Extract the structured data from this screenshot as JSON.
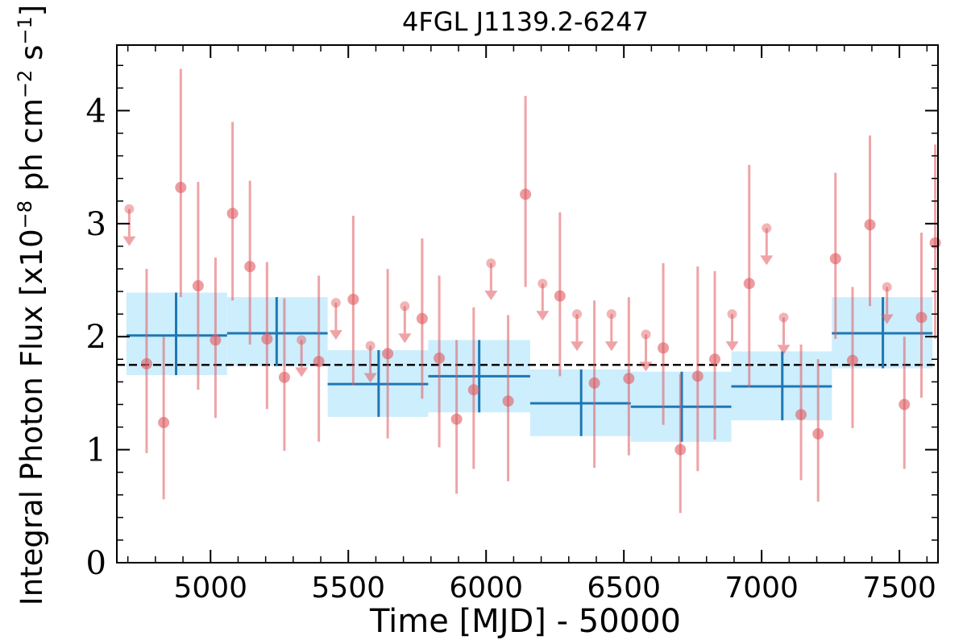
{
  "colors": {
    "light_curve": "#e05a5f",
    "bin": "#1f77b4",
    "bin_band": "#cdeefd",
    "mean_line": "#000000"
  },
  "chart_data": {
    "type": "scatter",
    "title": "4FGL J1139.2-6247",
    "xlabel": "Time [MJD] - 50000",
    "ylabel": "Integral Photon Flux [x10$^{-8}$ ph cm$^{-2}$ s$^{-1}$]",
    "xlim": [
      4660,
      7640
    ],
    "ylim": [
      0,
      4.58
    ],
    "xticks": [
      5000,
      5500,
      6000,
      6500,
      7000,
      7500
    ],
    "yticks": [
      0,
      1,
      2,
      3,
      4
    ],
    "mean_flux": 1.75,
    "grid": false,
    "points": [
      {
        "x": 4705,
        "y": 3.13,
        "upper_limit": true
      },
      {
        "x": 4768,
        "y": 1.76,
        "ylo": 0.97,
        "yhi": 2.6
      },
      {
        "x": 4830,
        "y": 1.24,
        "ylo": 0.56,
        "yhi": 2.0
      },
      {
        "x": 4892,
        "y": 3.32,
        "ylo": 2.35,
        "yhi": 4.37
      },
      {
        "x": 4955,
        "y": 2.45,
        "ylo": 1.53,
        "yhi": 3.37
      },
      {
        "x": 5018,
        "y": 1.97,
        "ylo": 1.28,
        "yhi": 2.7
      },
      {
        "x": 5080,
        "y": 3.09,
        "ylo": 2.32,
        "yhi": 3.9
      },
      {
        "x": 5143,
        "y": 2.62,
        "ylo": 1.93,
        "yhi": 3.38
      },
      {
        "x": 5205,
        "y": 1.98,
        "ylo": 1.36,
        "yhi": 2.66
      },
      {
        "x": 5268,
        "y": 1.64,
        "ylo": 0.99,
        "yhi": 2.34
      },
      {
        "x": 5330,
        "y": 1.97,
        "upper_limit": true
      },
      {
        "x": 5393,
        "y": 1.78,
        "ylo": 1.07,
        "yhi": 2.54
      },
      {
        "x": 5455,
        "y": 2.3,
        "upper_limit": true
      },
      {
        "x": 5518,
        "y": 2.33,
        "ylo": 1.57,
        "yhi": 3.07
      },
      {
        "x": 5580,
        "y": 1.92,
        "upper_limit": true
      },
      {
        "x": 5643,
        "y": 1.85,
        "ylo": 1.1,
        "yhi": 2.6
      },
      {
        "x": 5705,
        "y": 2.27,
        "upper_limit": true
      },
      {
        "x": 5768,
        "y": 2.16,
        "ylo": 1.45,
        "yhi": 2.87
      },
      {
        "x": 5830,
        "y": 1.81,
        "ylo": 1.02,
        "yhi": 2.54
      },
      {
        "x": 5893,
        "y": 1.27,
        "ylo": 0.61,
        "yhi": 1.97
      },
      {
        "x": 5955,
        "y": 1.53,
        "ylo": 0.83,
        "yhi": 2.26
      },
      {
        "x": 6018,
        "y": 2.65,
        "upper_limit": true
      },
      {
        "x": 6080,
        "y": 1.43,
        "ylo": 0.72,
        "yhi": 2.19
      },
      {
        "x": 6143,
        "y": 3.26,
        "ylo": 2.44,
        "yhi": 4.13
      },
      {
        "x": 6205,
        "y": 2.47,
        "upper_limit": true
      },
      {
        "x": 6268,
        "y": 2.36,
        "ylo": 1.65,
        "yhi": 3.1
      },
      {
        "x": 6330,
        "y": 2.2,
        "upper_limit": true
      },
      {
        "x": 6393,
        "y": 1.59,
        "ylo": 0.84,
        "yhi": 2.32
      },
      {
        "x": 6455,
        "y": 2.2,
        "upper_limit": true
      },
      {
        "x": 6518,
        "y": 1.63,
        "ylo": 0.95,
        "yhi": 2.35
      },
      {
        "x": 6580,
        "y": 2.02,
        "upper_limit": true
      },
      {
        "x": 6643,
        "y": 1.9,
        "ylo": 1.22,
        "yhi": 2.65
      },
      {
        "x": 6705,
        "y": 1.0,
        "ylo": 0.44,
        "yhi": 1.67
      },
      {
        "x": 6768,
        "y": 1.65,
        "ylo": 0.81,
        "yhi": 2.62
      },
      {
        "x": 6830,
        "y": 1.8,
        "ylo": 1.09,
        "yhi": 2.58
      },
      {
        "x": 6893,
        "y": 2.2,
        "upper_limit": true
      },
      {
        "x": 6955,
        "y": 2.47,
        "ylo": 1.55,
        "yhi": 3.52
      },
      {
        "x": 7018,
        "y": 2.96,
        "upper_limit": true
      },
      {
        "x": 7080,
        "y": 2.17,
        "upper_limit": true
      },
      {
        "x": 7143,
        "y": 1.31,
        "ylo": 0.73,
        "yhi": 1.93
      },
      {
        "x": 7205,
        "y": 1.14,
        "ylo": 0.54,
        "yhi": 1.8
      },
      {
        "x": 7268,
        "y": 2.69,
        "ylo": 1.98,
        "yhi": 3.45
      },
      {
        "x": 7330,
        "y": 1.79,
        "ylo": 1.19,
        "yhi": 2.44
      },
      {
        "x": 7393,
        "y": 2.99,
        "ylo": 2.27,
        "yhi": 3.78
      },
      {
        "x": 7455,
        "y": 2.44,
        "upper_limit": true
      },
      {
        "x": 7518,
        "y": 1.4,
        "ylo": 0.83,
        "yhi": 2.0
      },
      {
        "x": 7580,
        "y": 2.17,
        "ylo": 1.46,
        "yhi": 2.92
      },
      {
        "x": 7630,
        "y": 2.83,
        "ylo": 1.98,
        "yhi": 3.7
      }
    ],
    "bins": [
      {
        "x0": 4695,
        "x1": 5060,
        "xc": 4875,
        "y": 2.01,
        "ylo": 1.66,
        "yhi": 2.39
      },
      {
        "x0": 5060,
        "x1": 5425,
        "xc": 5240,
        "y": 2.03,
        "ylo": 1.74,
        "yhi": 2.35
      },
      {
        "x0": 5425,
        "x1": 5790,
        "xc": 5610,
        "y": 1.58,
        "ylo": 1.29,
        "yhi": 1.88
      },
      {
        "x0": 5790,
        "x1": 6160,
        "xc": 5975,
        "y": 1.65,
        "ylo": 1.33,
        "yhi": 1.97
      },
      {
        "x0": 6160,
        "x1": 6525,
        "xc": 6345,
        "y": 1.41,
        "ylo": 1.12,
        "yhi": 1.71
      },
      {
        "x0": 6525,
        "x1": 6890,
        "xc": 6710,
        "y": 1.38,
        "ylo": 1.07,
        "yhi": 1.69
      },
      {
        "x0": 6890,
        "x1": 7255,
        "xc": 7075,
        "y": 1.56,
        "ylo": 1.26,
        "yhi": 1.87
      },
      {
        "x0": 7255,
        "x1": 7620,
        "xc": 7440,
        "y": 2.03,
        "ylo": 1.72,
        "yhi": 2.35
      }
    ]
  }
}
